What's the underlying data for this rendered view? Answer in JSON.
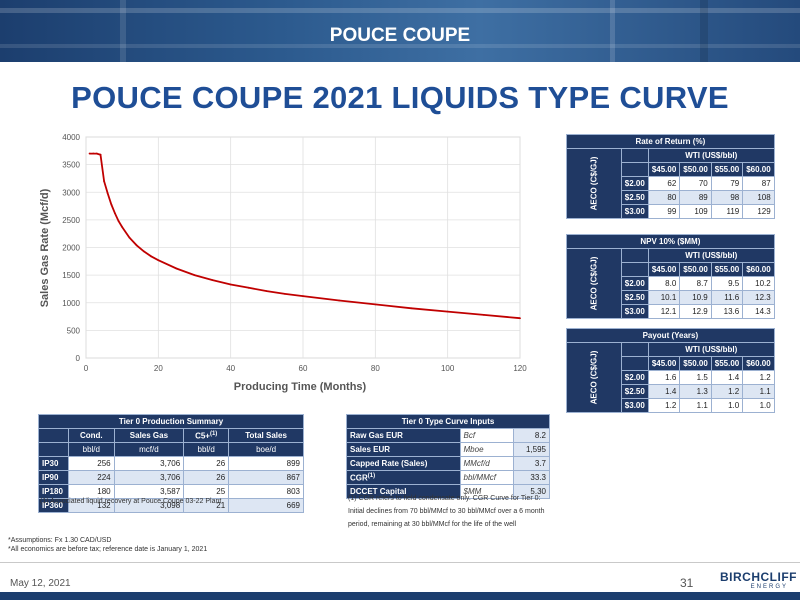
{
  "header": {
    "title": "POUCE COUPE"
  },
  "page_title": "POUCE COUPE 2021 LIQUIDS TYPE CURVE",
  "chart_data": {
    "type": "line",
    "xlabel": "Producing Time (Months)",
    "ylabel": "Sales Gas Rate (Mcf/d)",
    "xlim": [
      0,
      120
    ],
    "ylim": [
      0,
      4000
    ],
    "xticks": [
      0,
      20,
      40,
      60,
      80,
      100,
      120
    ],
    "yticks": [
      0,
      500,
      1000,
      1500,
      2000,
      2500,
      3000,
      3500,
      4000
    ],
    "grid": true,
    "series": [
      {
        "color": "#c00000",
        "x": [
          1,
          2,
          3,
          4,
          5,
          6,
          7,
          8,
          9,
          10,
          12,
          14,
          16,
          18,
          20,
          25,
          30,
          35,
          40,
          45,
          50,
          55,
          60,
          70,
          80,
          90,
          100,
          110,
          120
        ],
        "y": [
          3700,
          3700,
          3700,
          3680,
          3200,
          2980,
          2780,
          2620,
          2480,
          2370,
          2180,
          2040,
          1930,
          1840,
          1770,
          1620,
          1500,
          1410,
          1330,
          1270,
          1210,
          1160,
          1120,
          1040,
          970,
          900,
          840,
          780,
          720
        ]
      }
    ]
  },
  "ror_table": {
    "title": "Rate of Return (%)",
    "wti_header": "WTI (US$/bbl)",
    "aeco_label": "AECO (C$/GJ)",
    "columns": [
      "$45.00",
      "$50.00",
      "$55.00",
      "$60.00"
    ],
    "rows": [
      {
        "label": "$2.00",
        "values": [
          "62",
          "70",
          "79",
          "87"
        ]
      },
      {
        "label": "$2.50",
        "values": [
          "80",
          "89",
          "98",
          "108"
        ]
      },
      {
        "label": "$3.00",
        "values": [
          "99",
          "109",
          "119",
          "129"
        ]
      }
    ]
  },
  "npv_table": {
    "title": "NPV 10% ($MM)",
    "wti_header": "WTI (US$/bbl)",
    "aeco_label": "AECO (C$/GJ)",
    "columns": [
      "$45.00",
      "$50.00",
      "$55.00",
      "$60.00"
    ],
    "rows": [
      {
        "label": "$2.00",
        "values": [
          "8.0",
          "8.7",
          "9.5",
          "10.2"
        ]
      },
      {
        "label": "$2.50",
        "values": [
          "10.1",
          "10.9",
          "11.6",
          "12.3"
        ]
      },
      {
        "label": "$3.00",
        "values": [
          "12.1",
          "12.9",
          "13.6",
          "14.3"
        ]
      }
    ]
  },
  "payout_table": {
    "title": "Payout (Years)",
    "wti_header": "WTI (US$/bbl)",
    "aeco_label": "AECO (C$/GJ)",
    "columns": [
      "$45.00",
      "$50.00",
      "$55.00",
      "$60.00"
    ],
    "rows": [
      {
        "label": "$2.00",
        "values": [
          "1.6",
          "1.5",
          "1.4",
          "1.2"
        ]
      },
      {
        "label": "$2.50",
        "values": [
          "1.4",
          "1.3",
          "1.2",
          "1.1"
        ]
      },
      {
        "label": "$3.00",
        "values": [
          "1.2",
          "1.1",
          "1.0",
          "1.0"
        ]
      }
    ]
  },
  "prod_table": {
    "title": "Tier 0 Production Summary",
    "columns": [
      "Cond.",
      "Sales Gas",
      "C5+",
      "Total Sales"
    ],
    "c5_sup": "(1)",
    "units": [
      "bbl/d",
      "mcf/d",
      "bbl/d",
      "boe/d"
    ],
    "rows": [
      {
        "label": "IP30",
        "values": [
          "256",
          "3,706",
          "26",
          "899"
        ]
      },
      {
        "label": "IP90",
        "values": [
          "224",
          "3,706",
          "26",
          "867"
        ]
      },
      {
        "label": "IP180",
        "values": [
          "180",
          "3,587",
          "25",
          "803"
        ]
      },
      {
        "label": "IP360",
        "values": [
          "132",
          "3,098",
          "21",
          "669"
        ]
      }
    ],
    "footnote": "(1) Associated liquid recovery at Pouce Coupe 03-22 Plant"
  },
  "inputs_table": {
    "title": "Tier 0 Type Curve Inputs",
    "rows": [
      {
        "label": "Raw Gas EUR",
        "unit": "Bcf",
        "value": "8.2"
      },
      {
        "label": "Sales EUR",
        "unit": "Mboe",
        "value": "1,595"
      },
      {
        "label": "Capped Rate (Sales)",
        "unit": "MMcf/d",
        "value": "3.7"
      },
      {
        "label": "CGR",
        "label_sup": "(1)",
        "unit": "bbl/MMcf",
        "value": "33.3"
      },
      {
        "label": "DCCET Capital",
        "unit": "$MM",
        "value": "5.30"
      }
    ],
    "note_lines": [
      "(1) CGR refers to field condensate only. CGR Curve for Tier 0:",
      "Initial declines from 70 bbl/MMcf to 30 bbl/MMcf over a 6 month",
      "period, remaining at 30 bbl/MMcf for the life of the well"
    ]
  },
  "assumptions": [
    "*Assumptions: Fx 1.30 CAD/USD",
    "*All economics are before tax; reference date is January 1, 2021"
  ],
  "footer": {
    "date": "May 12, 2021",
    "page": "31",
    "logo_word": "BIRCHCLIFF",
    "logo_sub": "ENERGY"
  }
}
